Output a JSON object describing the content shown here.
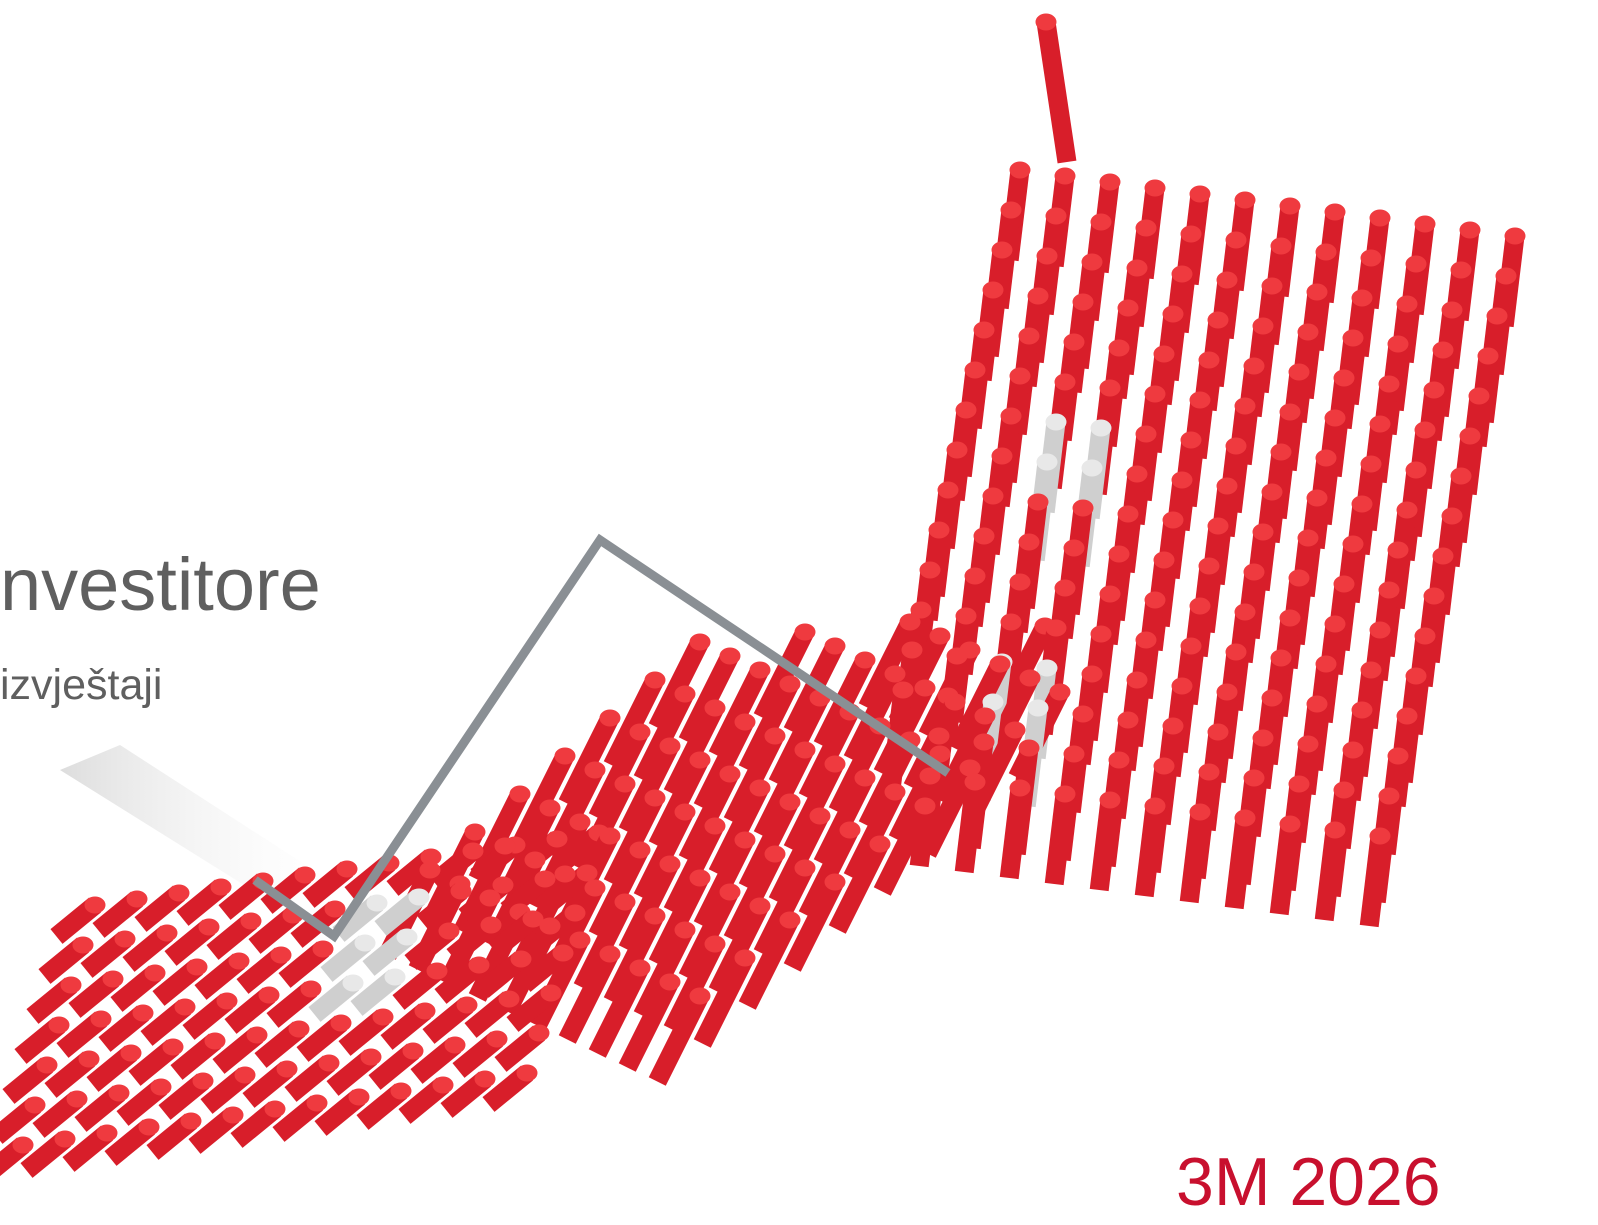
{
  "cover": {
    "heading": "nvestitore",
    "subheading": "izvještaji",
    "period": "3M 2026"
  },
  "artwork": {
    "kind": "rising-cylinder-arrow",
    "bar_color": "#d81e2a",
    "bar_top_color": "#ef3a3f",
    "highlight_color": "#e8e8e8",
    "line_color": "#8a8f94",
    "text_color": "#5f5f5f",
    "period_color": "#c8102e"
  }
}
